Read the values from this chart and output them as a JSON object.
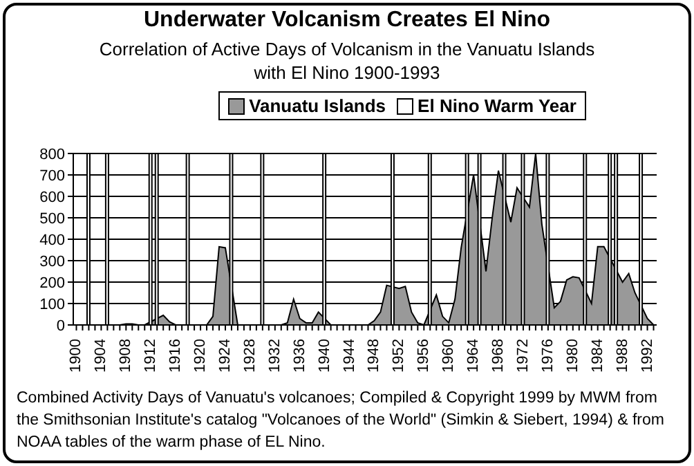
{
  "chart_data": {
    "type": "area",
    "title": "Underwater Volcanism Creates El Nino",
    "subtitle": "Correlation of Active Days of Volcanism in the Vanuatu Islands with El Nino 1900-1993",
    "categories": [
      "1900",
      null,
      null,
      null,
      "1904",
      null,
      null,
      null,
      "1908",
      null,
      null,
      null,
      "1912",
      null,
      null,
      null,
      "1916",
      null,
      null,
      null,
      "1920",
      null,
      null,
      null,
      "1924",
      null,
      null,
      null,
      "1928",
      null,
      null,
      null,
      "1932",
      null,
      null,
      null,
      "1936",
      null,
      null,
      null,
      "1940",
      null,
      null,
      null,
      "1944",
      null,
      null,
      null,
      "1948",
      null,
      null,
      null,
      "1952",
      null,
      null,
      null,
      "1956",
      null,
      null,
      null,
      "1960",
      null,
      null,
      null,
      "1964",
      null,
      null,
      null,
      "1968",
      null,
      null,
      null,
      "1972",
      null,
      null,
      null,
      "1976",
      null,
      null,
      null,
      "1980",
      null,
      null,
      null,
      "1984",
      null,
      null,
      null,
      "1988",
      null,
      null,
      null,
      "1992",
      null
    ],
    "series": [
      {
        "name": "Vanuatu Islands",
        "color": "#999999",
        "values": [
          0,
          0,
          null,
          0,
          0,
          null,
          0,
          0,
          5,
          5,
          0,
          0,
          null,
          null,
          45,
          15,
          0,
          0,
          null,
          0,
          0,
          0,
          40,
          365,
          360,
          null,
          0,
          0,
          0,
          0,
          null,
          0,
          0,
          0,
          10,
          120,
          30,
          10,
          10,
          60,
          null,
          0,
          0,
          0,
          0,
          0,
          0,
          0,
          20,
          60,
          185,
          null,
          170,
          180,
          60,
          10,
          0,
          null,
          140,
          40,
          10,
          120,
          360,
          null,
          700,
          null,
          250,
          500,
          720,
          null,
          480,
          640,
          null,
          550,
          800,
          470,
          null,
          80,
          110,
          210,
          225,
          220,
          null,
          100,
          365,
          365,
          null,
          null,
          200,
          240,
          150,
          null,
          30,
          0
        ]
      },
      {
        "name": "El Nino Warm Year",
        "type": "bar",
        "color": "#ffffff",
        "values": [
          null,
          null,
          800,
          null,
          null,
          800,
          null,
          null,
          null,
          null,
          null,
          null,
          800,
          800,
          null,
          null,
          null,
          null,
          800,
          null,
          null,
          null,
          null,
          null,
          null,
          800,
          null,
          null,
          null,
          null,
          800,
          null,
          null,
          null,
          null,
          null,
          null,
          null,
          null,
          null,
          800,
          null,
          null,
          null,
          null,
          null,
          null,
          null,
          null,
          null,
          null,
          800,
          null,
          null,
          null,
          null,
          null,
          800,
          null,
          null,
          null,
          null,
          null,
          800,
          null,
          800,
          null,
          null,
          null,
          800,
          null,
          null,
          800,
          null,
          null,
          null,
          800,
          null,
          null,
          null,
          null,
          null,
          800,
          null,
          null,
          null,
          800,
          800,
          null,
          null,
          null,
          800,
          null,
          null
        ]
      }
    ],
    "ylim": [
      0,
      800
    ],
    "yticks": [
      0,
      100,
      200,
      300,
      400,
      500,
      600,
      700,
      800
    ],
    "grid": "y",
    "legend": "top",
    "annotations": [
      "Combined Activity Days of Vanuatu's volcanoes; Compiled & Copyright 1999 by MWM from the Smithsonian Institute's catalog \"Volcanoes of the World\" (Simkin & Siebert, 1994) & from NOAA tables of the warm phase of EL Nino."
    ]
  }
}
